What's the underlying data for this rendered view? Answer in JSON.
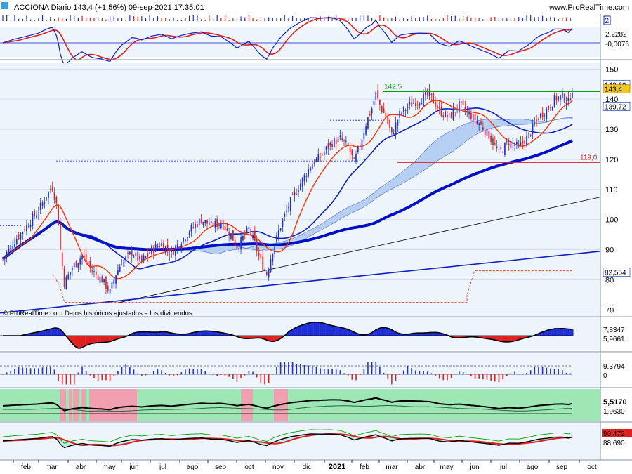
{
  "header": {
    "title": "ACCIONA Diario 143,4 (+1,56%) 09-sep-2021 17:35:01",
    "site": "www.ProRealTime.com",
    "collapse_label": "2"
  },
  "footer_note": "© ProRealTime.com  Datos históricos ajustados a los dividendos",
  "colors": {
    "panel_bg": "#eef4fc",
    "candle_up": "#1f2fd8",
    "candle_down": "#e02020",
    "ma_fast": "#ff3300",
    "ma_mid": "#1020c0",
    "ma_slow": "#0010c8",
    "band_fill": "#a9c6ef",
    "support_line": "#e02020",
    "resistance_line": "#00a000",
    "price_tag": "#f5c518"
  },
  "chart_data": {
    "type": "candlestick",
    "title": "ACCIONA Diario",
    "last_price": 143.4,
    "change_pct": 1.56,
    "date": "09-sep-2021",
    "ylim": [
      68,
      151
    ],
    "y_ticks": [
      70,
      80,
      90,
      100,
      110,
      120,
      130,
      140,
      150
    ],
    "x_month_labels": [
      "feb",
      "mar",
      "abr",
      "may",
      "jun",
      "jul",
      "ago",
      "sep",
      "oct",
      "nov",
      "dic",
      "2021",
      "feb",
      "mar",
      "abr",
      "may",
      "jun",
      "jul",
      "ago",
      "sep",
      "oct"
    ],
    "close_path": [
      [
        0,
        87
      ],
      [
        6,
        93
      ],
      [
        12,
        98
      ],
      [
        18,
        103
      ],
      [
        22,
        108
      ],
      [
        25,
        111
      ],
      [
        27,
        105
      ],
      [
        28,
        99
      ],
      [
        29,
        90
      ],
      [
        31,
        79
      ],
      [
        35,
        84
      ],
      [
        40,
        88
      ],
      [
        45,
        83
      ],
      [
        50,
        80
      ],
      [
        54,
        76
      ],
      [
        57,
        82
      ],
      [
        60,
        86
      ],
      [
        65,
        89
      ],
      [
        70,
        86
      ],
      [
        75,
        90
      ],
      [
        80,
        92
      ],
      [
        85,
        89
      ],
      [
        90,
        93
      ],
      [
        95,
        97
      ],
      [
        100,
        100
      ],
      [
        105,
        98
      ],
      [
        110,
        99
      ],
      [
        115,
        95
      ],
      [
        118,
        91
      ],
      [
        121,
        94
      ],
      [
        124,
        97
      ],
      [
        127,
        92
      ],
      [
        130,
        86
      ],
      [
        133,
        82
      ],
      [
        136,
        90
      ],
      [
        140,
        98
      ],
      [
        145,
        106
      ],
      [
        150,
        112
      ],
      [
        155,
        118
      ],
      [
        160,
        121
      ],
      [
        165,
        125
      ],
      [
        170,
        127
      ],
      [
        174,
        124
      ],
      [
        177,
        119
      ],
      [
        180,
        125
      ],
      [
        183,
        132
      ],
      [
        186,
        137
      ],
      [
        188,
        141.8
      ],
      [
        190,
        138
      ],
      [
        193,
        134
      ],
      [
        196,
        128
      ],
      [
        200,
        135
      ],
      [
        205,
        138
      ],
      [
        210,
        140
      ],
      [
        215,
        141.5
      ],
      [
        220,
        136
      ],
      [
        225,
        134
      ],
      [
        230,
        138
      ],
      [
        235,
        135
      ],
      [
        240,
        132
      ],
      [
        245,
        128
      ],
      [
        250,
        122
      ],
      [
        255,
        126
      ],
      [
        260,
        124
      ],
      [
        265,
        128
      ],
      [
        270,
        134
      ],
      [
        275,
        137
      ],
      [
        278,
        140
      ],
      [
        282,
        141
      ],
      [
        285,
        139
      ],
      [
        287,
        143.4
      ]
    ],
    "price_tags": [
      {
        "label": "142,69",
        "value": 142.69,
        "color": "#ffffff"
      },
      {
        "label": "143,4",
        "value": 143.4,
        "color": "#f5c518"
      },
      {
        "label": "139,72",
        "value": 139.72,
        "color": "#ffffff"
      },
      {
        "label": "82,554",
        "value": 82.554,
        "color": "#ffffff"
      }
    ],
    "levels": [
      {
        "label": "142,5",
        "value": 142.5,
        "color": "#00a000"
      },
      {
        "label": "119,0",
        "value": 119.0,
        "color": "#e02020"
      }
    ],
    "top_indicator": {
      "values": [
        "2,2282",
        "-0,0076"
      ]
    },
    "indicator_1": {
      "values": [
        "7,8347",
        "5,9661"
      ]
    },
    "indicator_2": {
      "values": [
        "9,3794",
        "0"
      ]
    },
    "indicator_3": {
      "values": [
        "5,5170",
        "1,9630"
      ]
    },
    "indicator_4": {
      "values": [
        "90,472",
        "88,690"
      ]
    }
  }
}
